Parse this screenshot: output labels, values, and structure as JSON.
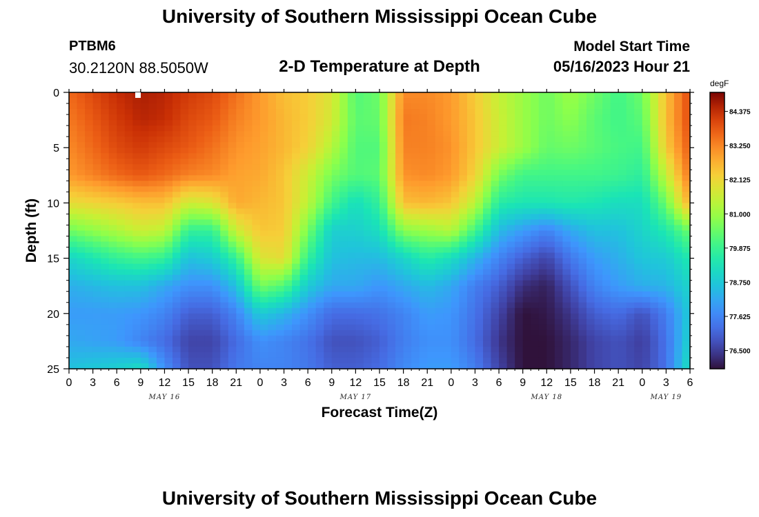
{
  "header": {
    "title": "University of Southern Mississippi Ocean Cube",
    "station_id": "PTBM6",
    "coordinates": "30.2120N  88.5050W",
    "subtitle": "2-D Temperature at Depth",
    "model_start_label": "Model Start Time",
    "model_start_value": "05/16/2023 Hour 21"
  },
  "footer": {
    "title": "University of Southern Mississippi Ocean Cube"
  },
  "chart_data": {
    "type": "heatmap",
    "title": "2-D Temperature at Depth",
    "xlabel": "Forecast Time(Z)",
    "ylabel": "Depth (ft)",
    "x_start_hour": 0,
    "x_end_hour": 78,
    "x_tick_labels": [
      "0",
      "3",
      "6",
      "9",
      "12",
      "15",
      "18",
      "21",
      "0",
      "3",
      "6",
      "9",
      "12",
      "15",
      "18",
      "21",
      "0",
      "3",
      "6",
      "9",
      "12",
      "15",
      "18",
      "21",
      "0",
      "3",
      "6"
    ],
    "date_labels": [
      {
        "label": "MAY 16",
        "hour": 12
      },
      {
        "label": "MAY 17",
        "hour": 36
      },
      {
        "label": "MAY 18",
        "hour": 60
      },
      {
        "label": "MAY 19",
        "hour": 75
      }
    ],
    "y_ticks": [
      0,
      5,
      10,
      15,
      20,
      25
    ],
    "ylim": [
      0,
      25
    ],
    "colorbar": {
      "unit": "degF",
      "min": 75.9,
      "max": 85.0,
      "tick_labels": [
        "84.375",
        "83.250",
        "82.125",
        "81.000",
        "79.875",
        "78.750",
        "77.625",
        "76.500"
      ],
      "tick_values": [
        84.375,
        83.25,
        82.125,
        81.0,
        79.875,
        78.75,
        77.625,
        76.5
      ]
    },
    "grid_depths": [
      0,
      2.5,
      5,
      7.5,
      10,
      12.5,
      15,
      17.5,
      20,
      22.5,
      25
    ],
    "grid_hours": [
      0,
      6,
      9,
      12,
      15,
      18,
      21,
      24,
      27,
      30,
      33,
      36,
      39,
      42,
      45,
      48,
      51,
      54,
      57,
      60,
      63,
      66,
      69,
      72,
      75,
      78
    ],
    "values": [
      [
        83.6,
        84.4,
        84.6,
        84.5,
        84.2,
        84.0,
        83.5,
        83.0,
        82.5,
        82.3,
        81.8,
        80.2,
        80.5,
        83.2,
        83.2,
        83.0,
        82.3,
        81.5,
        81.0,
        80.5,
        81.0,
        80.5,
        80.0,
        80.5,
        82.5,
        84.0
      ],
      [
        83.4,
        84.2,
        84.5,
        84.4,
        84.0,
        83.8,
        83.3,
        83.0,
        82.6,
        82.3,
        81.7,
        80.3,
        80.4,
        83.4,
        83.3,
        83.0,
        82.4,
        81.6,
        81.0,
        80.5,
        80.8,
        80.3,
        80.0,
        80.3,
        82.5,
        84.0
      ],
      [
        83.2,
        84.0,
        84.2,
        84.0,
        83.8,
        83.5,
        83.1,
        82.9,
        82.6,
        82.2,
        81.3,
        80.2,
        80.2,
        83.3,
        83.3,
        83.1,
        82.4,
        81.6,
        81.0,
        80.4,
        80.5,
        80.3,
        80.1,
        80.0,
        82.3,
        83.8
      ],
      [
        83.0,
        83.6,
        83.8,
        83.6,
        83.3,
        83.2,
        82.9,
        82.8,
        82.4,
        81.6,
        80.6,
        80.2,
        80.3,
        83.1,
        83.2,
        83.0,
        82.2,
        80.6,
        80.0,
        80.0,
        80.0,
        80.0,
        79.9,
        79.7,
        81.5,
        83.5
      ],
      [
        82.0,
        82.3,
        82.5,
        82.5,
        81.6,
        81.8,
        82.8,
        82.6,
        82.4,
        81.4,
        80.0,
        79.2,
        79.8,
        82.5,
        82.6,
        82.4,
        81.4,
        79.6,
        79.4,
        79.4,
        79.5,
        79.4,
        79.2,
        79.2,
        80.5,
        82.8
      ],
      [
        80.5,
        81.2,
        81.6,
        81.4,
        79.8,
        79.8,
        81.6,
        82.4,
        82.3,
        80.6,
        78.9,
        78.9,
        79.2,
        80.8,
        81.0,
        81.3,
        80.0,
        78.5,
        78.0,
        77.6,
        78.2,
        78.6,
        78.6,
        79.0,
        79.5,
        80.5
      ],
      [
        79.0,
        79.8,
        80.0,
        79.8,
        78.6,
        78.8,
        79.8,
        81.8,
        82.0,
        79.8,
        78.6,
        78.5,
        78.5,
        79.0,
        79.6,
        79.2,
        78.4,
        77.6,
        77.0,
        76.6,
        77.4,
        78.0,
        78.3,
        78.7,
        78.8,
        79.5
      ],
      [
        78.3,
        78.6,
        78.6,
        78.2,
        77.8,
        77.8,
        78.6,
        80.6,
        80.2,
        78.8,
        78.2,
        78.2,
        77.9,
        78.2,
        78.5,
        78.2,
        77.5,
        77.0,
        76.3,
        76.1,
        76.8,
        77.6,
        78.0,
        78.3,
        78.4,
        79.0
      ],
      [
        78.0,
        78.0,
        77.9,
        77.6,
        77.0,
        77.0,
        77.6,
        78.8,
        78.4,
        77.8,
        77.2,
        77.2,
        77.3,
        77.6,
        78.0,
        77.9,
        77.3,
        76.6,
        75.9,
        76.0,
        76.4,
        77.0,
        77.2,
        76.8,
        77.5,
        78.8
      ],
      [
        78.2,
        78.0,
        77.6,
        77.2,
        76.6,
        76.6,
        77.2,
        77.8,
        77.6,
        77.3,
        76.8,
        76.8,
        77.0,
        77.5,
        77.8,
        77.8,
        77.2,
        76.4,
        75.9,
        75.9,
        76.2,
        76.6,
        76.8,
        76.5,
        77.3,
        79.0
      ],
      [
        78.6,
        78.9,
        79.2,
        77.8,
        76.8,
        76.8,
        77.4,
        77.6,
        77.6,
        77.4,
        77.0,
        77.0,
        77.2,
        77.7,
        78.0,
        78.0,
        77.5,
        76.6,
        75.9,
        75.9,
        76.2,
        76.6,
        76.8,
        76.6,
        77.3,
        79.3
      ]
    ]
  }
}
